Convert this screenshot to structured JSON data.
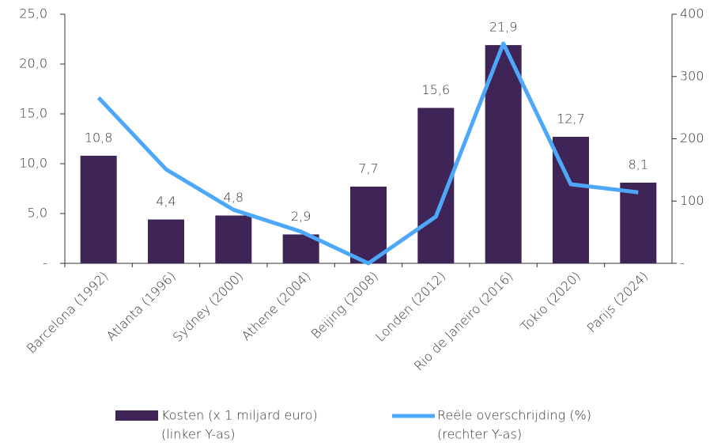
{
  "chart_data": {
    "type": "bar_line",
    "categories": [
      "Barcelona (1992)",
      "Atlanta (1996)",
      "Sydney (2000)",
      "Athene (2004)",
      "Beijing (2008)",
      "Londen (2012)",
      "Rio de Janeiro (2016)",
      "Tokio (2020)",
      "Parijs (2024)"
    ],
    "series": [
      {
        "name": "Kosten (x 1 miljard euro)",
        "legend_note": "(linker Y-as)",
        "type": "bar",
        "color": "#3f2458",
        "values": [
          10.8,
          4.4,
          4.8,
          2.9,
          7.7,
          15.6,
          21.9,
          12.7,
          8.1
        ],
        "value_labels": [
          "10,8",
          "4,4",
          "4,8",
          "2,9",
          "7,7",
          "15,6",
          "21,9",
          "12,7",
          "8,1"
        ]
      },
      {
        "name": "Reële overschrijding (%)",
        "legend_note": "(rechter Y-as)",
        "type": "line",
        "color": "#4da8fa",
        "axis": "y2",
        "values": [
          266,
          151,
          86,
          51,
          0,
          75,
          353,
          127,
          114
        ]
      }
    ],
    "ylim": [
      0,
      25
    ],
    "yticks": [
      {
        "value": 0,
        "label": "-"
      },
      {
        "value": 5,
        "label": "5,0"
      },
      {
        "value": 10,
        "label": "10,0"
      },
      {
        "value": 15,
        "label": "15,0"
      },
      {
        "value": 20,
        "label": "20,0"
      },
      {
        "value": 25,
        "label": "25,0"
      }
    ],
    "y2lim": [
      0,
      400
    ],
    "y2ticks": [
      {
        "value": 0,
        "label": "-"
      },
      100,
      200,
      300,
      400
    ],
    "legend": "bottom"
  }
}
